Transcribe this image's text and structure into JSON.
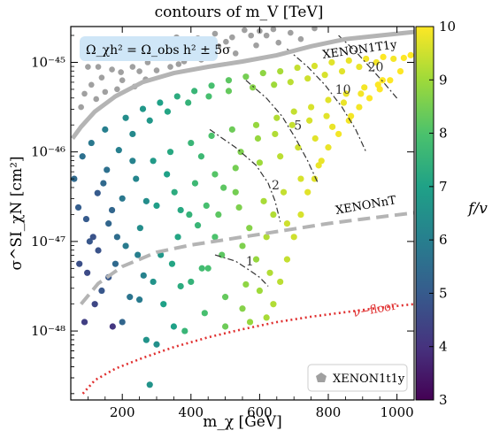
{
  "chart_data": {
    "type": "scatter",
    "title": "contours of m_V [TeV]",
    "xlabel": "m_χ [GeV]",
    "ylabel": "σ^SI_χN [cm²]",
    "colorbar_label": "f/v",
    "xlim": [
      50,
      1050
    ],
    "ylim_log10": [
      -48.77,
      -44.6
    ],
    "x_ticks": [
      200,
      400,
      600,
      800,
      1000
    ],
    "x_tick_labels": [
      "200",
      "400",
      "600",
      "800",
      "1000"
    ],
    "y_ticks_log10": [
      -45,
      -46,
      -47,
      -48
    ],
    "y_tick_labels": [
      "10⁻⁴⁵",
      "10⁻⁴⁶",
      "10⁻⁴⁷",
      "10⁻⁴⁸"
    ],
    "colorbar_range": [
      3,
      10
    ],
    "colorbar_ticks": [
      3,
      4,
      5,
      6,
      7,
      8,
      9,
      10
    ],
    "colormap": "viridis",
    "annotation": "Ω_χh² = Ω_obs h² ± 5σ",
    "annotation_box_color": "#cfe6f7",
    "legend": {
      "placement": "bottom-right",
      "label": "XENON1t1y",
      "marker_color": "#a0a0a0"
    },
    "lines": [
      {
        "name": "XENON1T1y",
        "style": "solid",
        "color": "#b4b4b4",
        "points": [
          [
            55,
            -45.85
          ],
          [
            80,
            -45.72
          ],
          [
            120,
            -45.55
          ],
          [
            180,
            -45.38
          ],
          [
            260,
            -45.22
          ],
          [
            350,
            -45.12
          ],
          [
            450,
            -45.05
          ],
          [
            550,
            -44.99
          ],
          [
            650,
            -44.92
          ],
          [
            750,
            -44.82
          ],
          [
            850,
            -44.74
          ],
          [
            950,
            -44.7
          ],
          [
            1050,
            -44.66
          ]
        ]
      },
      {
        "name": "XENONnT",
        "style": "dashed",
        "color": "#b4b4b4",
        "points": [
          [
            80,
            -47.7
          ],
          [
            130,
            -47.47
          ],
          [
            200,
            -47.28
          ],
          [
            300,
            -47.12
          ],
          [
            400,
            -47.04
          ],
          [
            500,
            -46.98
          ],
          [
            600,
            -46.92
          ],
          [
            700,
            -46.86
          ],
          [
            800,
            -46.8
          ],
          [
            900,
            -46.75
          ],
          [
            1050,
            -46.68
          ]
        ]
      },
      {
        "name": "ν−floor",
        "style": "dotted",
        "color": "#e03030",
        "points": [
          [
            85,
            -48.7
          ],
          [
            120,
            -48.55
          ],
          [
            180,
            -48.42
          ],
          [
            260,
            -48.3
          ],
          [
            350,
            -48.18
          ],
          [
            450,
            -48.07
          ],
          [
            550,
            -47.98
          ],
          [
            650,
            -47.9
          ],
          [
            750,
            -47.84
          ],
          [
            850,
            -47.79
          ],
          [
            950,
            -47.74
          ],
          [
            1050,
            -47.7
          ]
        ]
      }
    ],
    "contours": [
      {
        "label": "1",
        "label_pos": [
          560,
          -47.27
        ],
        "points": [
          [
            470,
            -47.15
          ],
          [
            530,
            -47.22
          ],
          [
            570,
            -47.32
          ],
          [
            600,
            -47.4
          ],
          [
            625,
            -47.5
          ]
        ]
      },
      {
        "label": "2",
        "label_pos": [
          635,
          -46.42
        ],
        "points": [
          [
            455,
            -45.75
          ],
          [
            530,
            -45.95
          ],
          [
            590,
            -46.15
          ],
          [
            625,
            -46.35
          ],
          [
            645,
            -46.55
          ],
          [
            660,
            -46.78
          ]
        ]
      },
      {
        "label": "5",
        "label_pos": [
          700,
          -45.75
        ],
        "points": [
          [
            560,
            -45.2
          ],
          [
            620,
            -45.4
          ],
          [
            665,
            -45.6
          ],
          [
            705,
            -45.85
          ],
          [
            740,
            -46.1
          ],
          [
            770,
            -46.35
          ]
        ]
      },
      {
        "label": "10",
        "label_pos": [
          820,
          -45.35
        ],
        "points": [
          [
            680,
            -44.85
          ],
          [
            740,
            -45.05
          ],
          [
            790,
            -45.25
          ],
          [
            840,
            -45.5
          ],
          [
            880,
            -45.75
          ],
          [
            910,
            -46.0
          ]
        ]
      },
      {
        "label": "20",
        "label_pos": [
          915,
          -45.1
        ],
        "points": [
          [
            830,
            -44.7
          ],
          [
            880,
            -44.88
          ],
          [
            920,
            -45.05
          ],
          [
            960,
            -45.22
          ],
          [
            1000,
            -45.4
          ]
        ]
      }
    ],
    "grey_points": [
      [
        120,
        -44.91
      ],
      [
        166,
        -44.93
      ],
      [
        212,
        -44.8
      ],
      [
        274,
        -45.0
      ],
      [
        310,
        -44.86
      ],
      [
        340,
        -45.05
      ],
      [
        358,
        -44.72
      ],
      [
        400,
        -44.94
      ],
      [
        444,
        -44.84
      ],
      [
        470,
        -44.68
      ],
      [
        502,
        -44.77
      ],
      [
        530,
        -44.9
      ],
      [
        556,
        -44.64
      ],
      [
        590,
        -44.81
      ],
      [
        620,
        -44.7
      ],
      [
        100,
        -45.05
      ],
      [
        140,
        -45.17
      ],
      [
        196,
        -45.11
      ],
      [
        236,
        -45.27
      ],
      [
        268,
        -45.19
      ],
      [
        300,
        -45.09
      ],
      [
        150,
        -45.33
      ],
      [
        185,
        -45.3
      ],
      [
        225,
        -44.95
      ],
      [
        258,
        -44.82
      ],
      [
        380,
        -44.99
      ],
      [
        420,
        -44.73
      ],
      [
        460,
        -44.88
      ],
      [
        655,
        -44.78
      ],
      [
        690,
        -44.67
      ],
      [
        720,
        -44.74
      ],
      [
        760,
        -44.62
      ],
      [
        90,
        -45.35
      ],
      [
        124,
        -45.41
      ],
      [
        110,
        -45.25
      ],
      [
        200,
        -45.2
      ],
      [
        170,
        -45.08
      ],
      [
        325,
        -44.78
      ],
      [
        640,
        -44.63
      ],
      [
        575,
        -44.7
      ],
      [
        430,
        -44.97
      ],
      [
        364,
        -45.02
      ],
      [
        480,
        -44.82
      ],
      [
        520,
        -44.72
      ],
      [
        286,
        -44.92
      ],
      [
        250,
        -45.1
      ],
      [
        230,
        -45.05
      ],
      [
        130,
        -45.05
      ],
      [
        80,
        -45.5
      ],
      [
        600,
        -44.65
      ]
    ],
    "colored_points": [
      [
        72,
        -46.62,
        5.1
      ],
      [
        98,
        -47.35,
        4.6
      ],
      [
        90,
        -47.9,
        4.3
      ],
      [
        115,
        -46.95,
        4.8
      ],
      [
        128,
        -46.46,
        5.0
      ],
      [
        140,
        -47.55,
        4.9
      ],
      [
        155,
        -46.2,
        5.6
      ],
      [
        160,
        -46.8,
        5.3
      ],
      [
        172,
        -47.95,
        4.1
      ],
      [
        180,
        -47.25,
        5.4
      ],
      [
        190,
        -45.98,
        6.0
      ],
      [
        200,
        -46.52,
        5.8
      ],
      [
        210,
        -47.05,
        5.9
      ],
      [
        222,
        -47.62,
        5.7
      ],
      [
        230,
        -45.8,
        6.3
      ],
      [
        240,
        -46.3,
        6.2
      ],
      [
        252,
        -46.85,
        6.4
      ],
      [
        262,
        -47.38,
        6.1
      ],
      [
        270,
        -48.1,
        6.6
      ],
      [
        280,
        -45.65,
        6.7
      ],
      [
        290,
        -46.1,
        6.8
      ],
      [
        300,
        -46.6,
        6.9
      ],
      [
        312,
        -47.15,
        6.7
      ],
      [
        320,
        -47.7,
        7.0
      ],
      [
        332,
        -45.55,
        7.1
      ],
      [
        340,
        -46.0,
        7.2
      ],
      [
        352,
        -46.45,
        7.3
      ],
      [
        362,
        -46.95,
        7.1
      ],
      [
        370,
        -47.5,
        7.3
      ],
      [
        382,
        -48.0,
        7.6
      ],
      [
        392,
        -45.45,
        7.5
      ],
      [
        400,
        -45.9,
        7.6
      ],
      [
        412,
        -46.35,
        7.7
      ],
      [
        420,
        -46.82,
        7.6
      ],
      [
        432,
        -47.3,
        7.8
      ],
      [
        440,
        -47.8,
        7.9
      ],
      [
        452,
        -45.38,
        7.9
      ],
      [
        460,
        -45.82,
        8.0
      ],
      [
        470,
        -46.25,
        8.1
      ],
      [
        480,
        -46.7,
        8.2
      ],
      [
        490,
        -47.15,
        8.2
      ],
      [
        500,
        -47.62,
        8.3
      ],
      [
        510,
        -45.32,
        8.3
      ],
      [
        520,
        -45.75,
        8.4
      ],
      [
        530,
        -46.18,
        8.5
      ],
      [
        540,
        -46.62,
        8.6
      ],
      [
        550,
        -47.05,
        8.6
      ],
      [
        560,
        -47.48,
        8.8
      ],
      [
        572,
        -47.9,
        8.9
      ],
      [
        580,
        -45.28,
        8.7
      ],
      [
        590,
        -45.7,
        8.9
      ],
      [
        600,
        -46.12,
        9.0
      ],
      [
        612,
        -46.55,
        9.1
      ],
      [
        620,
        -46.95,
        9.2
      ],
      [
        630,
        -47.35,
        9.2
      ],
      [
        642,
        -45.25,
        9.0
      ],
      [
        650,
        -45.62,
        9.2
      ],
      [
        660,
        -46.05,
        9.3
      ],
      [
        670,
        -46.45,
        9.4
      ],
      [
        680,
        -46.8,
        9.5
      ],
      [
        690,
        -45.22,
        9.3
      ],
      [
        700,
        -45.55,
        9.4
      ],
      [
        712,
        -45.95,
        9.5
      ],
      [
        720,
        -46.3,
        9.6
      ],
      [
        740,
        -45.18,
        9.5
      ],
      [
        750,
        -45.5,
        9.6
      ],
      [
        762,
        -45.85,
        9.7
      ],
      [
        772,
        -46.15,
        9.8
      ],
      [
        790,
        -45.14,
        9.6
      ],
      [
        800,
        -45.42,
        9.7
      ],
      [
        812,
        -45.72,
        9.8
      ],
      [
        840,
        -45.1,
        9.7
      ],
      [
        852,
        -45.35,
        9.8
      ],
      [
        866,
        -45.6,
        9.9
      ],
      [
        890,
        -45.05,
        9.8
      ],
      [
        905,
        -45.28,
        9.9
      ],
      [
        940,
        -45.0,
        9.9
      ],
      [
        958,
        -45.2,
        10.0
      ],
      [
        990,
        -44.96,
        9.9
      ],
      [
        1020,
        -44.95,
        10.0
      ],
      [
        1040,
        -44.92,
        10.0
      ],
      [
        60,
        -46.3,
        5.4
      ],
      [
        84,
        -46.05,
        5.6
      ],
      [
        110,
        -45.9,
        5.8
      ],
      [
        150,
        -45.75,
        6.0
      ],
      [
        210,
        -45.62,
        6.4
      ],
      [
        260,
        -45.52,
        6.7
      ],
      [
        310,
        -45.45,
        7.0
      ],
      [
        360,
        -45.38,
        7.3
      ],
      [
        410,
        -45.32,
        7.6
      ],
      [
        460,
        -45.26,
        7.9
      ],
      [
        510,
        -45.2,
        8.2
      ],
      [
        560,
        -45.16,
        8.5
      ],
      [
        610,
        -45.12,
        8.8
      ],
      [
        660,
        -45.1,
        9.1
      ],
      [
        710,
        -45.06,
        9.4
      ],
      [
        760,
        -45.04,
        9.6
      ],
      [
        810,
        -45.0,
        9.7
      ],
      [
        860,
        -44.98,
        9.8
      ],
      [
        910,
        -44.96,
        9.9
      ],
      [
        960,
        -44.94,
        10.0
      ],
      [
        120,
        -47.7,
        4.5
      ],
      [
        160,
        -47.4,
        4.9
      ],
      [
        200,
        -47.9,
        5.3
      ],
      [
        250,
        -47.65,
        5.9
      ],
      [
        300,
        -48.15,
        6.5
      ],
      [
        350,
        -47.95,
        7.0
      ],
      [
        400,
        -47.45,
        7.5
      ],
      [
        450,
        -47.3,
        7.9
      ],
      [
        500,
        -47.95,
        8.4
      ],
      [
        550,
        -47.75,
        8.7
      ],
      [
        600,
        -47.55,
        9.0
      ],
      [
        620,
        -47.85,
        9.1
      ],
      [
        640,
        -47.7,
        9.2
      ],
      [
        660,
        -47.45,
        9.3
      ],
      [
        680,
        -47.2,
        9.4
      ],
      [
        700,
        -46.95,
        9.5
      ],
      [
        720,
        -46.7,
        9.6
      ],
      [
        740,
        -46.45,
        9.7
      ],
      [
        760,
        -46.3,
        9.7
      ],
      [
        780,
        -46.1,
        9.8
      ],
      [
        800,
        -45.95,
        9.8
      ],
      [
        830,
        -45.8,
        9.9
      ],
      [
        860,
        -45.65,
        9.9
      ],
      [
        890,
        -45.5,
        9.9
      ],
      [
        920,
        -45.4,
        10.0
      ],
      [
        950,
        -45.3,
        10.0
      ],
      [
        980,
        -45.2,
        10.0
      ],
      [
        1010,
        -45.1,
        10.0
      ],
      [
        130,
        -47.1,
        4.8
      ],
      [
        170,
        -46.65,
        5.3
      ],
      [
        230,
        -46.1,
        6.1
      ],
      [
        270,
        -46.55,
        6.4
      ],
      [
        330,
        -46.25,
        7.0
      ],
      [
        370,
        -46.65,
        7.2
      ],
      [
        430,
        -46.05,
        7.7
      ],
      [
        470,
        -46.95,
        8.0
      ],
      [
        530,
        -46.45,
        8.5
      ],
      [
        570,
        -46.85,
        8.7
      ],
      [
        590,
        -47.2,
        8.9
      ],
      [
        640,
        -46.7,
        9.2
      ],
      [
        280,
        -48.6,
        6.6
      ],
      [
        95,
        -46.75,
        5.0
      ],
      [
        75,
        -47.25,
        4.7
      ],
      [
        105,
        -47.0,
        4.9
      ],
      [
        145,
        -46.35,
        5.4
      ],
      [
        185,
        -46.95,
        5.5
      ],
      [
        245,
        -47.15,
        6.0
      ],
      [
        290,
        -47.45,
        6.6
      ],
      [
        345,
        -47.25,
        7.1
      ],
      [
        395,
        -46.7,
        7.5
      ],
      [
        445,
        -46.6,
        7.9
      ],
      [
        495,
        -46.4,
        8.2
      ],
      [
        545,
        -46.0,
        8.6
      ],
      [
        595,
        -45.85,
        8.9
      ],
      [
        645,
        -45.8,
        9.2
      ],
      [
        695,
        -45.7,
        9.4
      ],
      [
        745,
        -45.65,
        9.6
      ],
      [
        795,
        -45.6,
        9.7
      ],
      [
        845,
        -45.45,
        9.8
      ],
      [
        895,
        -45.35,
        9.9
      ],
      [
        945,
        -45.25,
        10.0
      ]
    ]
  }
}
